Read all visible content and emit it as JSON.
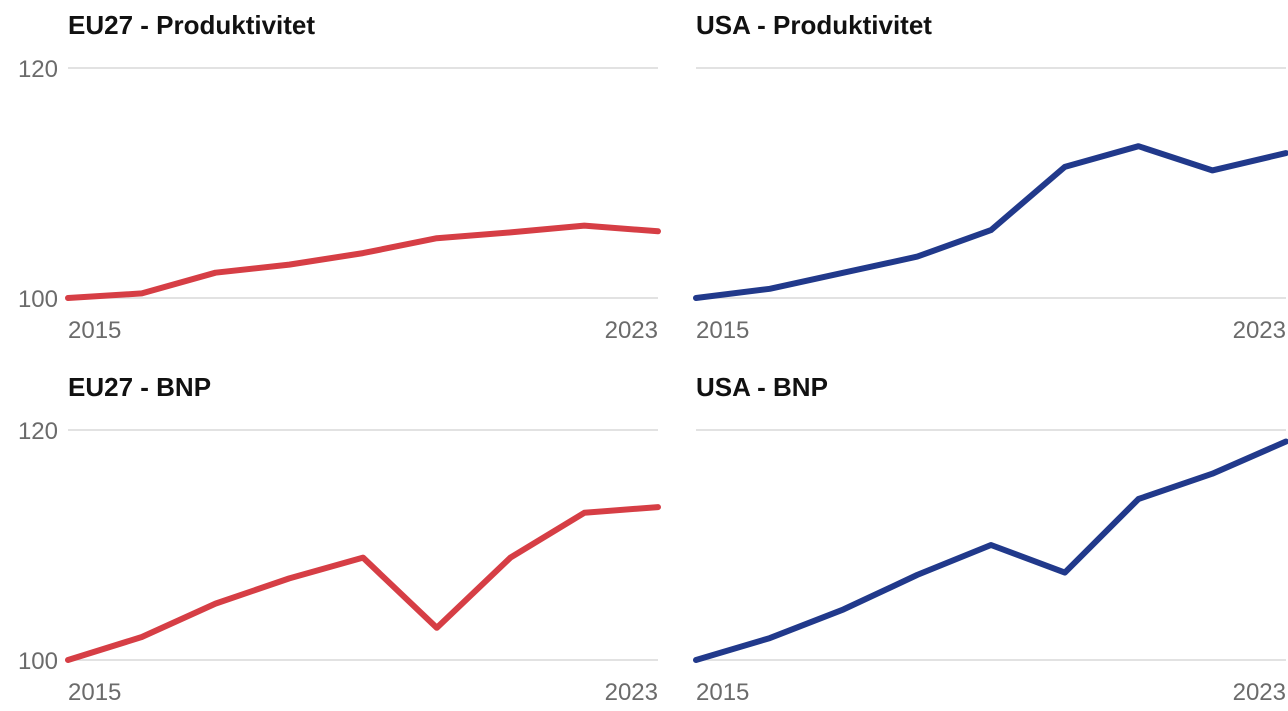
{
  "chart_data": [
    {
      "type": "line",
      "title": "EU27 - Produktivitet",
      "x": [
        2015,
        2016,
        2017,
        2018,
        2019,
        2020,
        2021,
        2022,
        2023
      ],
      "y_ticks": [
        "120",
        "100"
      ],
      "x_ticks": [
        "2015",
        "2023"
      ],
      "ylim": [
        100,
        120
      ],
      "series": [
        {
          "color": "#d63e45",
          "values": [
            100.0,
            100.4,
            102.2,
            102.9,
            103.9,
            105.2,
            105.7,
            106.3,
            105.8
          ]
        }
      ]
    },
    {
      "type": "line",
      "title": "USA - Produktivitet",
      "x": [
        2015,
        2016,
        2017,
        2018,
        2019,
        2020,
        2021,
        2022,
        2023
      ],
      "y_ticks": [
        "",
        ""
      ],
      "x_ticks": [
        "2015",
        "2023"
      ],
      "ylim": [
        100,
        120
      ],
      "series": [
        {
          "color": "#21398b",
          "values": [
            100.0,
            100.8,
            102.2,
            103.6,
            105.9,
            111.4,
            113.2,
            111.1,
            112.6
          ]
        }
      ]
    },
    {
      "type": "line",
      "title": "EU27 - BNP",
      "x": [
        2015,
        2016,
        2017,
        2018,
        2019,
        2020,
        2021,
        2022,
        2023
      ],
      "y_ticks": [
        "120",
        "100"
      ],
      "x_ticks": [
        "2015",
        "2023"
      ],
      "ylim": [
        100,
        120
      ],
      "series": [
        {
          "color": "#d63e45",
          "values": [
            100.0,
            102.0,
            104.9,
            107.1,
            108.9,
            102.8,
            108.9,
            112.8,
            113.3
          ]
        }
      ]
    },
    {
      "type": "line",
      "title": "USA - BNP",
      "x": [
        2015,
        2016,
        2017,
        2018,
        2019,
        2020,
        2021,
        2022,
        2023
      ],
      "y_ticks": [
        "",
        ""
      ],
      "x_ticks": [
        "2015",
        "2023"
      ],
      "ylim": [
        100,
        120
      ],
      "series": [
        {
          "color": "#21398b",
          "values": [
            100.0,
            101.9,
            104.4,
            107.4,
            110.0,
            107.6,
            114.0,
            116.2,
            119.0
          ]
        }
      ]
    }
  ]
}
